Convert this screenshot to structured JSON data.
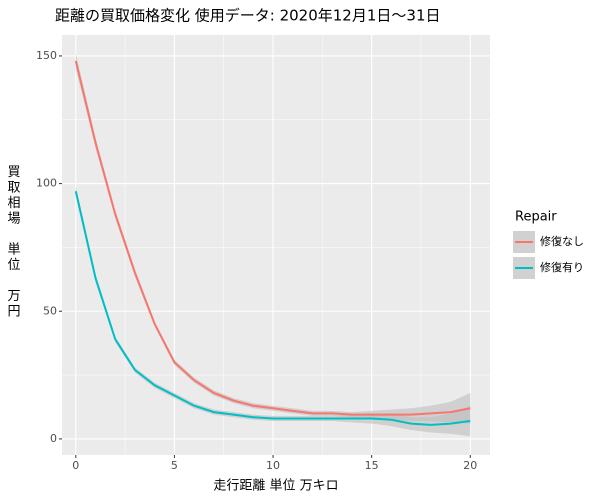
{
  "chart_data": {
    "type": "line",
    "title": "距離の買取価格変化 使用データ: 2020年12月1日～31日",
    "x_label": "走行距離 単位 万キロ",
    "y_label": "買取相場 単位 万円",
    "legend_title": "Repair",
    "legend_position": "right",
    "grid": true,
    "x": [
      0,
      1,
      2,
      3,
      4,
      5,
      6,
      7,
      8,
      9,
      10,
      11,
      12,
      13,
      14,
      15,
      16,
      17,
      18,
      19,
      20
    ],
    "series": [
      {
        "name": "修復なし",
        "color": "#F8766D",
        "values": [
          148,
          116,
          88,
          65,
          45,
          30,
          23,
          18,
          15,
          13,
          12,
          11,
          10,
          10,
          9.5,
          9.5,
          9.5,
          9.5,
          10,
          10.5,
          12
        ],
        "lower": [
          145,
          114,
          86.5,
          63.5,
          44,
          29,
          22,
          17,
          14,
          12,
          11,
          10,
          9,
          9,
          8.5,
          8,
          7.5,
          7,
          7,
          6.5,
          6
        ],
        "upper": [
          151,
          118,
          89.5,
          66.5,
          46,
          31,
          24,
          19,
          16,
          14,
          13,
          12,
          11,
          11,
          10.5,
          11,
          11.5,
          12,
          13,
          14.5,
          18
        ]
      },
      {
        "name": "修復有り",
        "color": "#00BFC4",
        "values": [
          97,
          63,
          39,
          27,
          21,
          17,
          13,
          10.5,
          9.5,
          8.5,
          8,
          8,
          8,
          8,
          8,
          8,
          7.5,
          6,
          5.5,
          6,
          7
        ],
        "lower": [
          95,
          61.5,
          38,
          26,
          20,
          16,
          12,
          9.5,
          8.5,
          7.5,
          7,
          7,
          7,
          7,
          6.5,
          6,
          5,
          3.5,
          2.5,
          2,
          1
        ],
        "upper": [
          99,
          64.5,
          40,
          28,
          22,
          18,
          14,
          11.5,
          10.5,
          9.5,
          9,
          9,
          9,
          9,
          9.5,
          10,
          10,
          8.5,
          8.5,
          10,
          13
        ]
      }
    ],
    "xlim": [
      -0.7,
      21
    ],
    "ylim": [
      -6.3,
      158.2
    ],
    "xticks": [
      0,
      5,
      10,
      15,
      20
    ],
    "yticks": [
      0,
      50,
      100,
      150
    ],
    "x_minor_grid": [
      2.5,
      7.5,
      12.5,
      17.5
    ],
    "y_minor_grid": [
      25,
      75,
      125
    ],
    "band_color": "#BEBEBE"
  }
}
